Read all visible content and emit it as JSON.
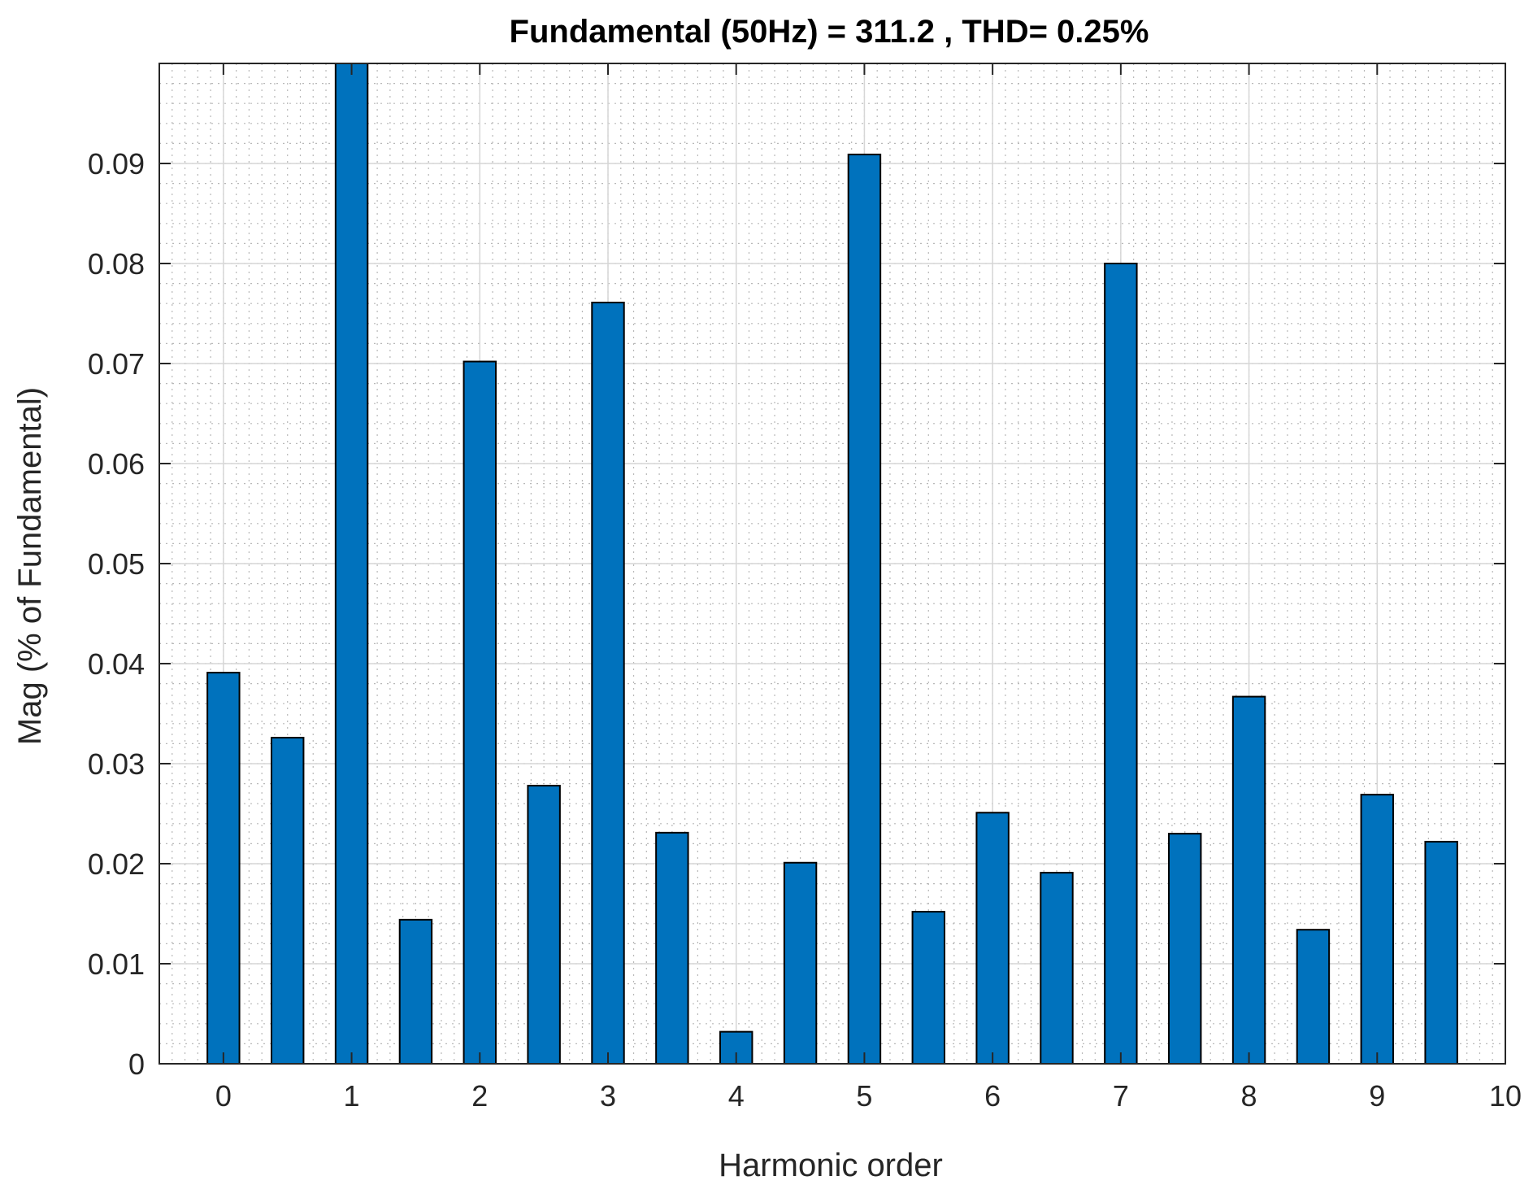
{
  "chart_data": {
    "type": "bar",
    "title": "Fundamental (50Hz) = 311.2 , THD= 0.25%",
    "xlabel": "Harmonic order",
    "ylabel": "Mag (% of Fundamental)",
    "xlim": [
      -0.5,
      10
    ],
    "ylim": [
      0,
      0.1
    ],
    "xticks": [
      0,
      1,
      2,
      3,
      4,
      5,
      6,
      7,
      8,
      9,
      10
    ],
    "xtick_labels": [
      "0",
      "1",
      "2",
      "3",
      "4",
      "5",
      "6",
      "7",
      "8",
      "9",
      "10"
    ],
    "yticks": [
      0,
      0.01,
      0.02,
      0.03,
      0.04,
      0.05,
      0.06,
      0.07,
      0.08,
      0.09
    ],
    "ytick_labels": [
      "0",
      "0.01",
      "0.02",
      "0.03",
      "0.04",
      "0.05",
      "0.06",
      "0.07",
      "0.08",
      "0.09"
    ],
    "grid": true,
    "minor_grid": true,
    "bar_width": 0.25,
    "x": [
      0,
      0.5,
      1,
      1.5,
      2,
      2.5,
      3,
      3.5,
      4,
      4.5,
      5,
      5.5,
      6,
      6.5,
      7,
      7.5,
      8,
      8.5,
      9,
      9.5
    ],
    "values": [
      0.0391,
      0.0326,
      0.1,
      0.0144,
      0.0702,
      0.0278,
      0.0761,
      0.0231,
      0.0032,
      0.0201,
      0.0909,
      0.0152,
      0.0251,
      0.0191,
      0.08,
      0.023,
      0.0367,
      0.0134,
      0.0269,
      0.0222
    ],
    "bar_color": "#0072BD",
    "bar_edge_color": "#000000"
  }
}
